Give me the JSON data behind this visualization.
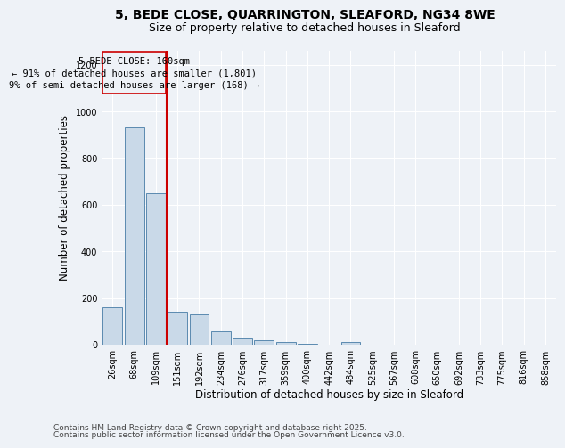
{
  "title_line1": "5, BEDE CLOSE, QUARRINGTON, SLEAFORD, NG34 8WE",
  "title_line2": "Size of property relative to detached houses in Sleaford",
  "xlabel": "Distribution of detached houses by size in Sleaford",
  "ylabel": "Number of detached properties",
  "categories": [
    "26sqm",
    "68sqm",
    "109sqm",
    "151sqm",
    "192sqm",
    "234sqm",
    "276sqm",
    "317sqm",
    "359sqm",
    "400sqm",
    "442sqm",
    "484sqm",
    "525sqm",
    "567sqm",
    "608sqm",
    "650sqm",
    "692sqm",
    "733sqm",
    "775sqm",
    "816sqm",
    "858sqm"
  ],
  "values": [
    160,
    930,
    650,
    140,
    130,
    58,
    25,
    20,
    10,
    4,
    0,
    10,
    0,
    0,
    0,
    0,
    0,
    0,
    0,
    0,
    0
  ],
  "bar_color": "#c9d9e8",
  "bar_edge_color": "#5a8ab0",
  "vline_x_index": 3,
  "vline_color": "#cc0000",
  "annotation_line1": "5 BEDE CLOSE: 160sqm",
  "annotation_line2": "← 91% of detached houses are smaller (1,801)",
  "annotation_line3": "9% of semi-detached houses are larger (168) →",
  "annotation_box_color": "#cc0000",
  "annotation_text_color": "#000000",
  "ylim": [
    0,
    1260
  ],
  "yticks": [
    0,
    200,
    400,
    600,
    800,
    1000,
    1200
  ],
  "background_color": "#eef2f7",
  "grid_color": "#ffffff",
  "footer_line1": "Contains HM Land Registry data © Crown copyright and database right 2025.",
  "footer_line2": "Contains public sector information licensed under the Open Government Licence v3.0.",
  "title_fontsize": 10,
  "subtitle_fontsize": 9,
  "axis_label_fontsize": 8.5,
  "tick_fontsize": 7,
  "annotation_fontsize": 7.5,
  "footer_fontsize": 6.5
}
